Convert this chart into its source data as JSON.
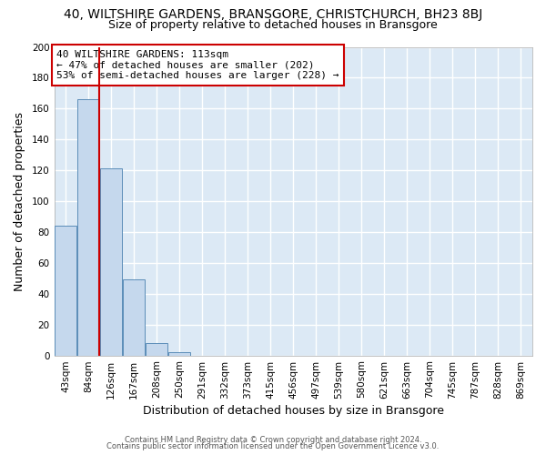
{
  "title": "40, WILTSHIRE GARDENS, BRANSGORE, CHRISTCHURCH, BH23 8BJ",
  "subtitle": "Size of property relative to detached houses in Bransgore",
  "xlabel": "Distribution of detached houses by size in Bransgore",
  "ylabel": "Number of detached properties",
  "bar_labels": [
    "43sqm",
    "84sqm",
    "126sqm",
    "167sqm",
    "208sqm",
    "250sqm",
    "291sqm",
    "332sqm",
    "373sqm",
    "415sqm",
    "456sqm",
    "497sqm",
    "539sqm",
    "580sqm",
    "621sqm",
    "663sqm",
    "704sqm",
    "745sqm",
    "787sqm",
    "828sqm",
    "869sqm"
  ],
  "bar_values": [
    84,
    166,
    121,
    49,
    8,
    2,
    0,
    0,
    0,
    0,
    0,
    0,
    0,
    0,
    0,
    0,
    0,
    0,
    0,
    0,
    0
  ],
  "bar_color": "#c5d8ed",
  "bar_edge_color": "#5b8db8",
  "ylim": [
    0,
    200
  ],
  "yticks": [
    0,
    20,
    40,
    60,
    80,
    100,
    120,
    140,
    160,
    180,
    200
  ],
  "property_line_label": "40 WILTSHIRE GARDENS: 113sqm",
  "annotation_line1": "← 47% of detached houses are smaller (202)",
  "annotation_line2": "53% of semi-detached houses are larger (228) →",
  "footer1": "Contains HM Land Registry data © Crown copyright and database right 2024.",
  "footer2": "Contains public sector information licensed under the Open Government Licence v3.0.",
  "fig_bg_color": "#ffffff",
  "plot_bg_color": "#dce9f5",
  "grid_color": "#ffffff",
  "annotation_box_edge_color": "#cc0000",
  "red_line_color": "#cc0000",
  "title_fontsize": 10,
  "subtitle_fontsize": 9,
  "xlabel_fontsize": 9,
  "ylabel_fontsize": 9,
  "tick_fontsize": 7.5,
  "annotation_fontsize": 8,
  "footer_fontsize": 6
}
